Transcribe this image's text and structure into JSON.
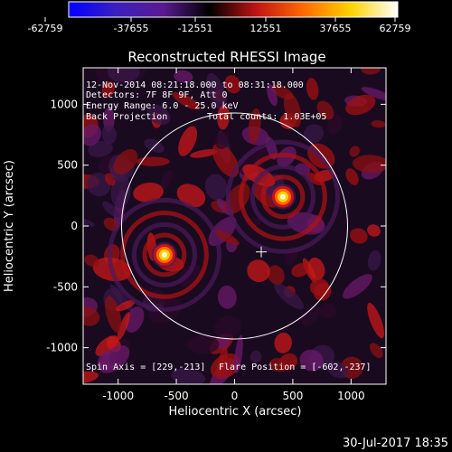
{
  "colorbar": {
    "ticks": [
      "-62759",
      "-37655",
      "-12551",
      "12551",
      "37655",
      "62759"
    ],
    "colors": [
      "#0000ff",
      "#3a1fc0",
      "#5a1a90",
      "#000000",
      "#c01414",
      "#ff6a00",
      "#ffd200",
      "#ffffff"
    ]
  },
  "title": "Reconstructed RHESSI Image",
  "info": {
    "line1": "12-Nov-2014 08:21:18.000 to 08:31:18.000",
    "line2": "Detectors: 7F 8F 9F, Att 0",
    "line3": "Energy Range: 6.0 - 25.0 keV",
    "line4_left": "Back Projection",
    "line4_right": "Total counts: 1.03E+05",
    "spin_axis": "Spin Axis = [229,-213]",
    "flare_position": "Flare Position = [-602,-237]"
  },
  "footer_timestamp": "30-Jul-2017 18:35",
  "chart_data": {
    "type": "heatmap",
    "title": "Reconstructed RHESSI Image",
    "xlabel": "Heliocentric X (arcsec)",
    "ylabel": "Heliocentric Y (arcsec)",
    "xlim": [
      -1300,
      1300
    ],
    "ylim": [
      -1300,
      1300
    ],
    "xticks": [
      -1000,
      -500,
      0,
      500,
      1000
    ],
    "yticks": [
      -1000,
      -500,
      0,
      500,
      1000
    ],
    "xtick_labels": [
      "-1000",
      "-500",
      "0",
      "500",
      "1000"
    ],
    "ytick_labels": [
      "-1000",
      "-500",
      "0",
      "500",
      "1000"
    ],
    "value_range": [
      -62759,
      62759
    ],
    "solar_limb_radius_arcsec": 970,
    "cross_marker": [
      229,
      -213
    ],
    "sources": [
      {
        "x": -602,
        "y": -237,
        "peak": 62759
      },
      {
        "x": 415,
        "y": 240,
        "peak": 58000
      }
    ]
  }
}
